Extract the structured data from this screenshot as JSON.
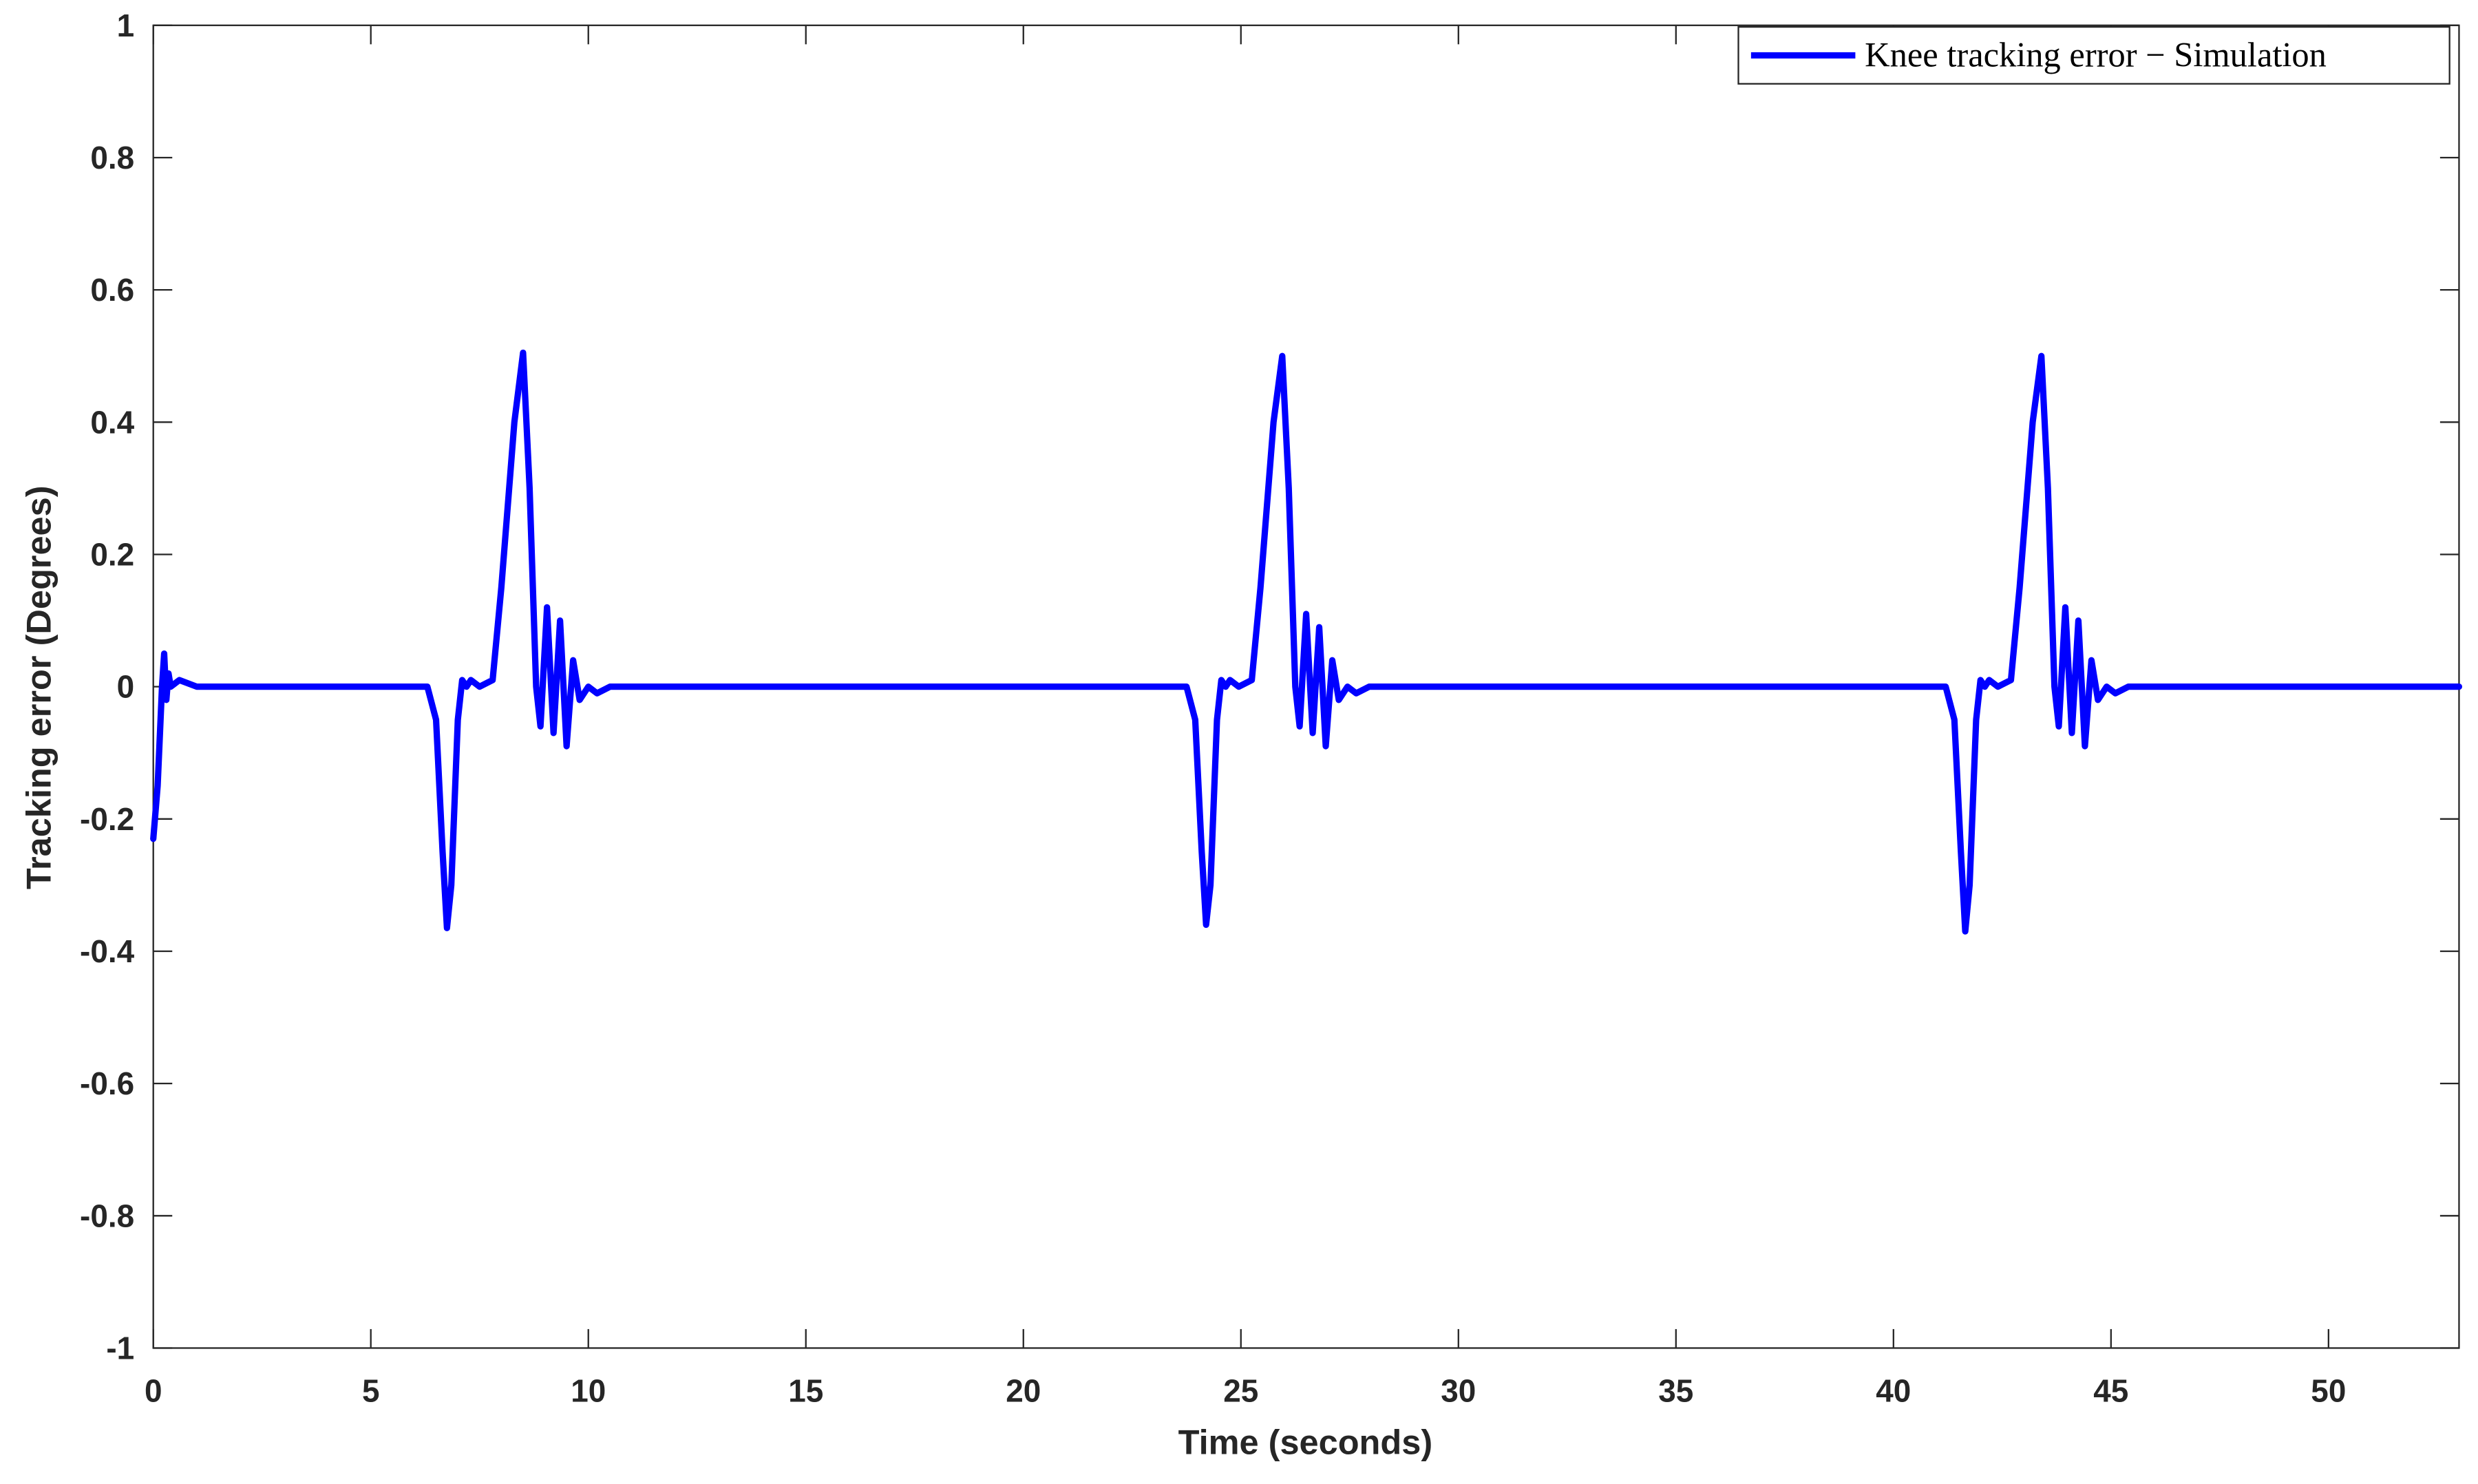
{
  "chart_data": {
    "type": "line",
    "xlabel": "Time (seconds)",
    "ylabel": "Tracking error (Degrees)",
    "x": [
      0,
      0.1,
      0.2,
      0.25,
      0.3,
      0.35,
      0.4,
      0.6,
      1,
      6.3,
      6.5,
      6.65,
      6.75,
      6.85,
      7.0,
      7.1,
      7.2,
      7.3,
      7.5,
      7.8,
      8.0,
      8.3,
      8.5,
      8.65,
      8.8,
      8.9,
      9.05,
      9.2,
      9.35,
      9.5,
      9.65,
      9.8,
      10.0,
      10.2,
      10.5,
      23.75,
      23.95,
      24.1,
      24.2,
      24.3,
      24.45,
      24.55,
      24.65,
      24.75,
      24.95,
      25.25,
      25.45,
      25.75,
      25.95,
      26.1,
      26.25,
      26.35,
      26.5,
      26.65,
      26.8,
      26.95,
      27.1,
      27.25,
      27.45,
      27.65,
      27.95,
      41.2,
      41.4,
      41.55,
      41.65,
      41.75,
      41.9,
      42.0,
      42.1,
      42.2,
      42.4,
      42.7,
      42.9,
      43.2,
      43.4,
      43.55,
      43.7,
      43.8,
      43.95,
      44.1,
      44.25,
      44.4,
      44.55,
      44.7,
      44.9,
      45.1,
      45.4,
      53
    ],
    "series": [
      {
        "name": "Knee tracking error − Simulation",
        "color": "#0000ff",
        "values": [
          -0.23,
          -0.15,
          0.0,
          0.05,
          -0.02,
          0.02,
          0.0,
          0.01,
          0,
          0,
          -0.05,
          -0.25,
          -0.365,
          -0.3,
          -0.05,
          0.01,
          0,
          0.01,
          0,
          0.01,
          0.15,
          0.4,
          0.505,
          0.3,
          0,
          -0.06,
          0.12,
          -0.07,
          0.1,
          -0.09,
          0.04,
          -0.02,
          0,
          -0.01,
          0,
          0,
          -0.05,
          -0.25,
          -0.36,
          -0.3,
          -0.05,
          0.01,
          0,
          0.01,
          0,
          0.01,
          0.15,
          0.4,
          0.5,
          0.3,
          0,
          -0.06,
          0.11,
          -0.07,
          0.09,
          -0.09,
          0.04,
          -0.02,
          0,
          -0.01,
          0,
          0,
          -0.05,
          -0.25,
          -0.37,
          -0.3,
          -0.05,
          0.01,
          0,
          0.01,
          0,
          0.01,
          0.15,
          0.4,
          0.5,
          0.3,
          0,
          -0.06,
          0.12,
          -0.07,
          0.1,
          -0.09,
          0.04,
          -0.02,
          0,
          -0.01,
          0,
          0
        ]
      }
    ],
    "xlim": [
      0,
      53
    ],
    "ylim": [
      -1,
      1
    ],
    "xticks": [
      0,
      5,
      10,
      15,
      20,
      25,
      30,
      35,
      40,
      45,
      50
    ],
    "yticks": [
      -1,
      -0.8,
      -0.6,
      -0.4,
      -0.2,
      0,
      0.2,
      0.4,
      0.6,
      0.8,
      1
    ],
    "legend": "upper right"
  }
}
